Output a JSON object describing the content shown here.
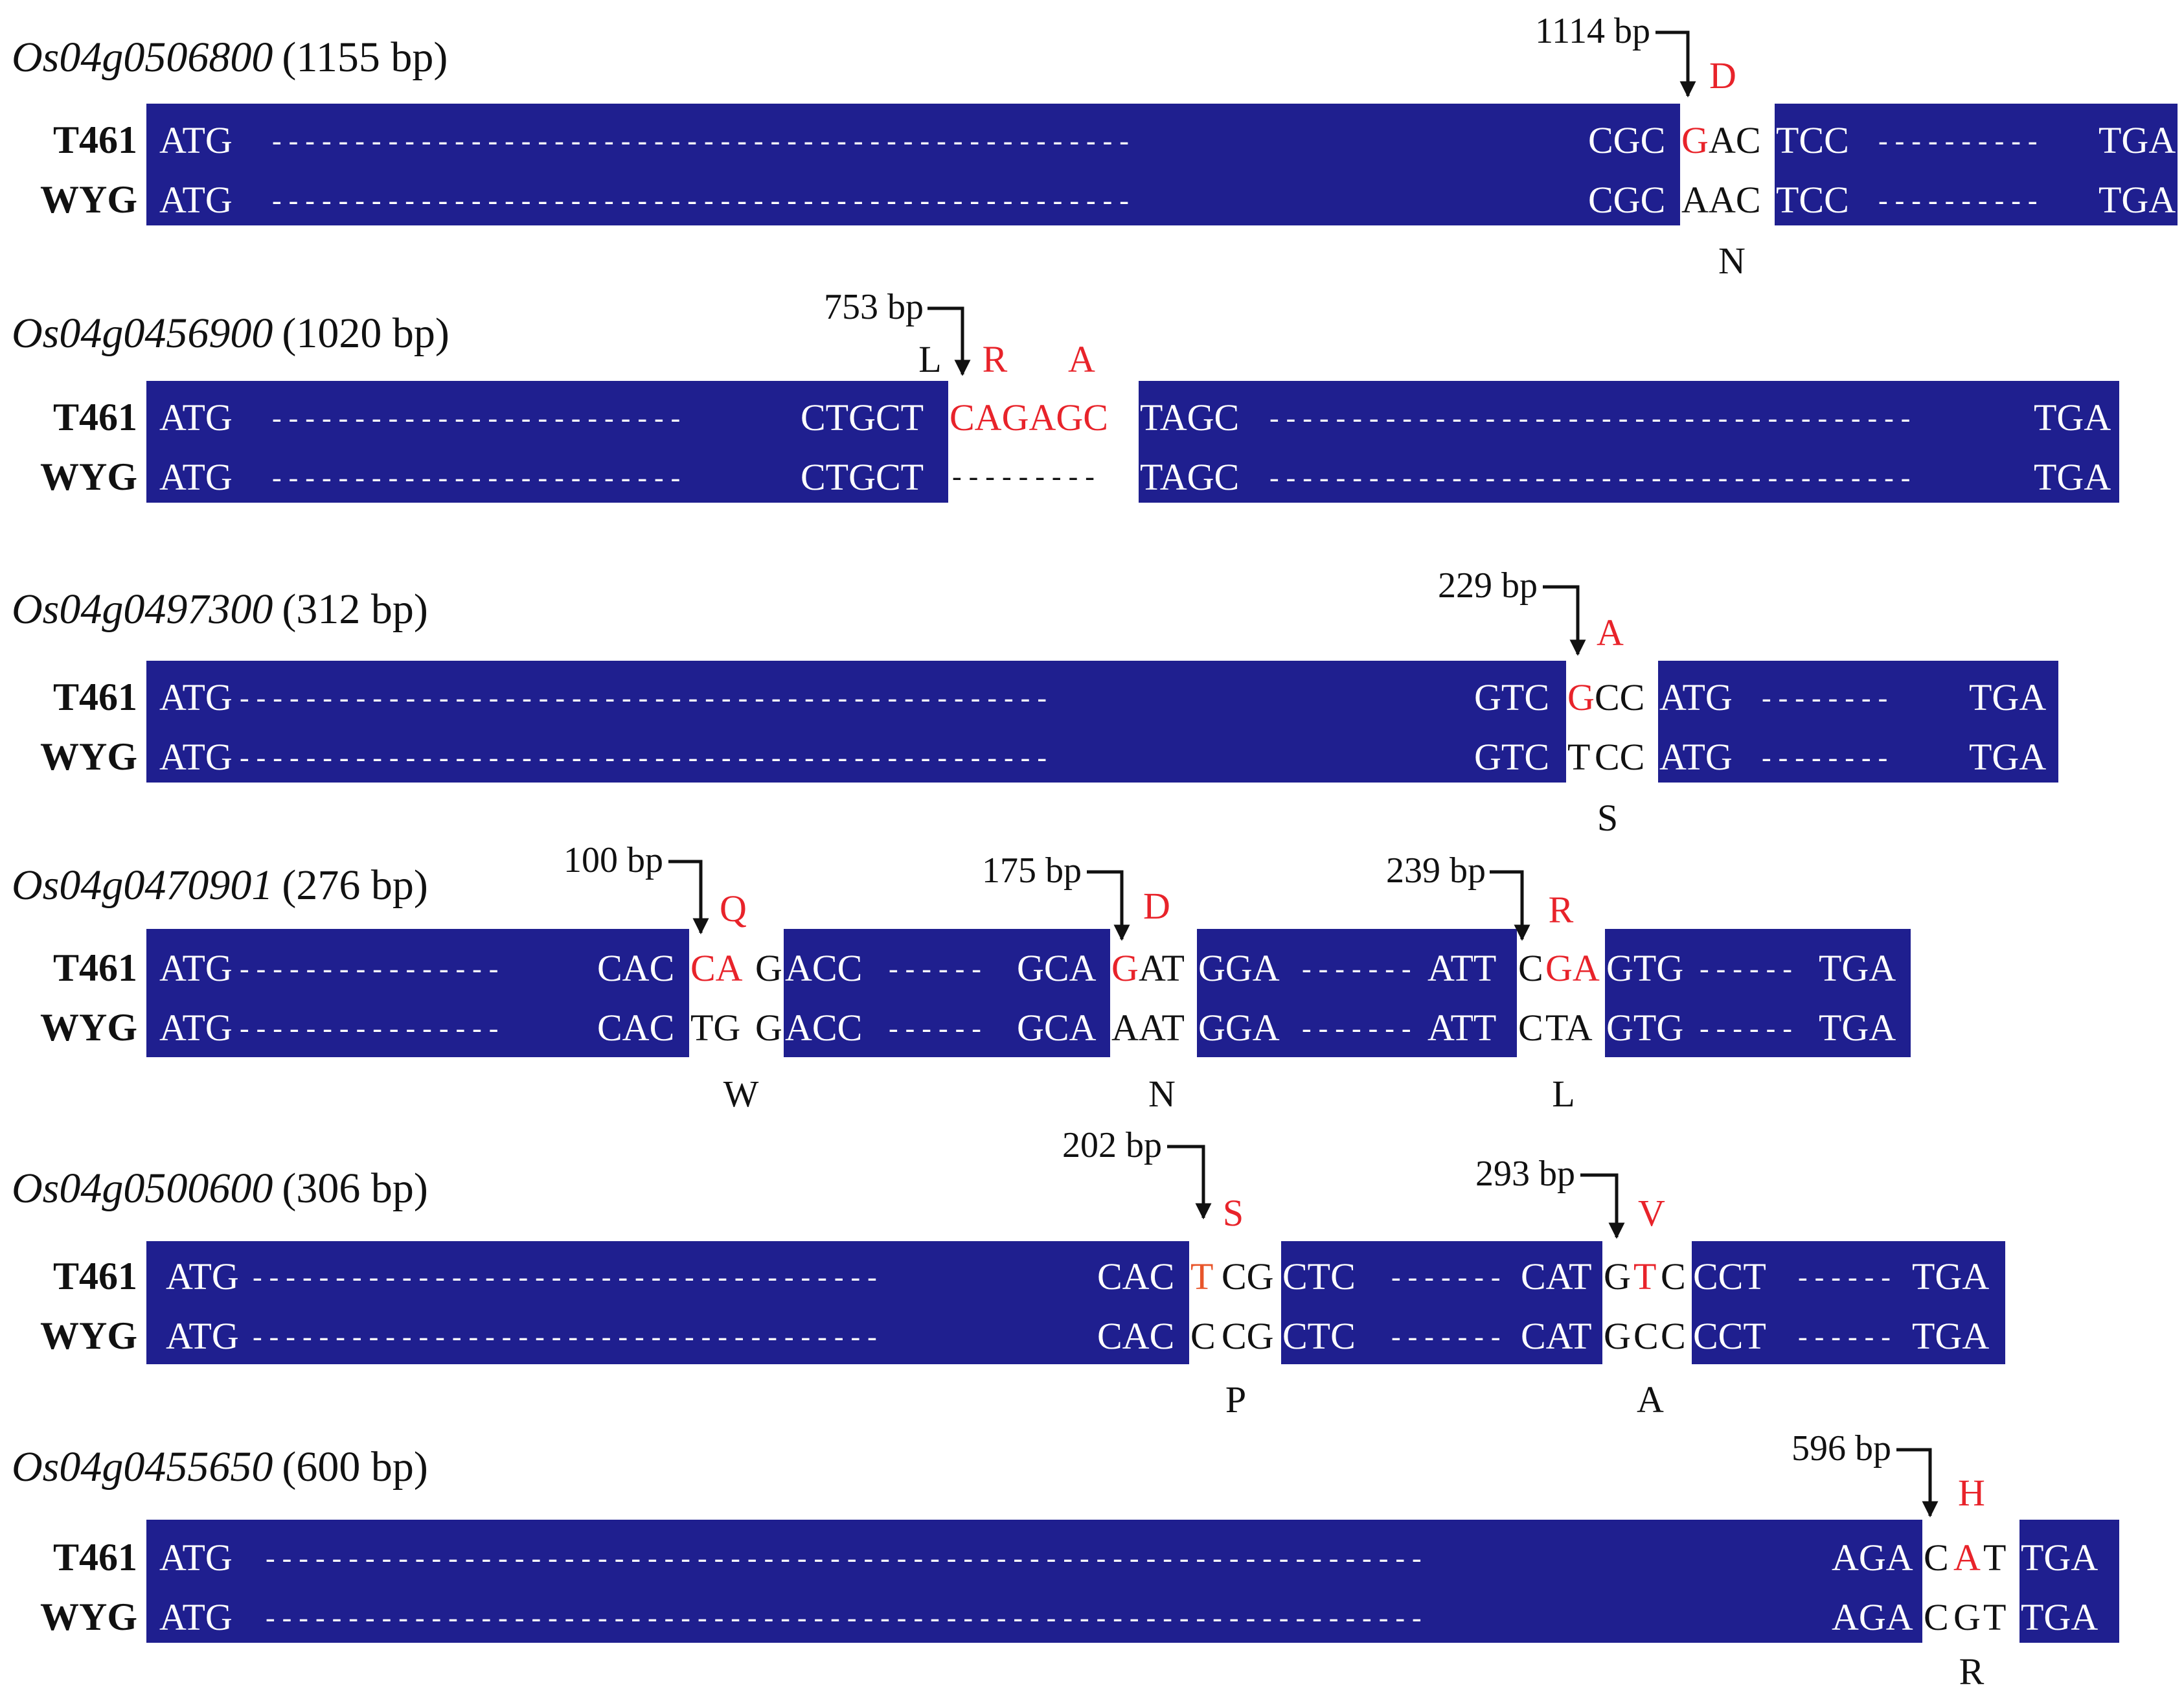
{
  "colors": {
    "bar": "#1f1f8f",
    "text": "#111111",
    "bar_text": "#ffffff",
    "highlight": "#e8232a",
    "highlight_alt": "#e8552a"
  },
  "strains": [
    "T461",
    "WYG"
  ],
  "genes": [
    {
      "id": "Os04g0506800",
      "length": "(1155 bp)",
      "rows": [
        [
          "ATG",
          "- - - - - - - - - - - - - - - - - - - - - - - - - - - - - - - - - - - - - - - - - - - - - - - - - - - -",
          "CGC",
          "G",
          "AC",
          "TCC",
          "- - - - - - - - - -",
          "TGA"
        ],
        [
          "ATG",
          "- - - - - - - - - - - - - - - - - - - - - - - - - - - - - - - - - - - - - - - - - - - - - - - - - - - -",
          "CGC",
          "A",
          "AC",
          "TCC",
          "- - - - - - - - - -",
          "TGA"
        ]
      ],
      "annotations": [
        {
          "pos": "1114 bp",
          "aa_t461": "D",
          "aa_wyg": "N"
        }
      ]
    },
    {
      "id": "Os04g0456900",
      "length": "(1020 bp)",
      "rows": [
        [
          "ATG",
          "- - - - - - - - - - - - - - - - - - - - - - - - -",
          "CTGCT",
          "CAGAGC",
          "TAGC",
          "- - - - - - - - - - - - - - - - - - - - - - - - - - - - - - - - - - - - - - -",
          "TGA"
        ],
        [
          "ATG",
          "- - - - - - - - - - - - - - - - - - - - - - - - -",
          "CTGCT",
          "- - - - - - - - -",
          "TAGC",
          "- - - - - - - - - - - - - - - - - - - - - - - - - - - - - - - - - - - - - - -",
          "TGA"
        ]
      ],
      "annotations": [
        {
          "pos": "753 bp",
          "aa_left": "L",
          "aa_1": "R",
          "aa_2": "A"
        }
      ]
    },
    {
      "id": "Os04g0497300",
      "length": "(312 bp)",
      "rows": [
        [
          "ATG",
          "- - - - - - - - - - - - - - - - - - - - - - - - - - - - - - - - - - - - - - - - - - - - - - - - -",
          "GTC",
          "G",
          "CC",
          "ATG",
          "- - - - - - - -",
          "TGA"
        ],
        [
          "ATG",
          "- - - - - - - - - - - - - - - - - - - - - - - - - - - - - - - - - - - - - - - - - - - - - - - - -",
          "GTC",
          "T",
          "CC",
          "ATG",
          "- - - - - - - -",
          "TGA"
        ]
      ],
      "annotations": [
        {
          "pos": "229 bp",
          "aa_t461": "A",
          "aa_wyg": "S"
        }
      ]
    },
    {
      "id": "Os04g0470901",
      "length": "(276 bp)",
      "rows": [
        [
          "ATG",
          "- - - - - - - - - - - - - - - -",
          "CAC",
          "CA",
          "G",
          "ACC",
          "- - - - - -",
          "GCA",
          "G",
          "AT",
          "GGA",
          "- - - - - - -",
          "ATT",
          "C",
          "GA",
          "GTG",
          "- - - - - -",
          "TGA"
        ],
        [
          "ATG",
          "- - - - - - - - - - - - - - - -",
          "CAC",
          "TG",
          "G",
          "ACC",
          "- - - - - -",
          "GCA",
          "A",
          "AT",
          "GGA",
          "- - - - - - -",
          "ATT",
          "C",
          "TA",
          "GTG",
          "- - - - - -",
          "TGA"
        ]
      ],
      "annotations": [
        {
          "pos": "100 bp",
          "aa_t461": "Q",
          "aa_wyg": "W"
        },
        {
          "pos": "175 bp",
          "aa_t461": "D",
          "aa_wyg": "N"
        },
        {
          "pos": "239 bp",
          "aa_t461": "R",
          "aa_wyg": "L"
        }
      ]
    },
    {
      "id": "Os04g0500600",
      "length": "(306 bp)",
      "rows": [
        [
          "ATG",
          "- - - - - - - - - - - - - - - - - - - - - - - - - - - - - - - - - - - - - -",
          "CAC",
          "T",
          "CG",
          "CTC",
          "- - - - - - -",
          "CAT",
          "G",
          "T",
          "C",
          "CCT",
          "- - - - - -",
          "TGA"
        ],
        [
          "ATG",
          "- - - - - - - - - - - - - - - - - - - - - - - - - - - - - - - - - - - - - -",
          "CAC",
          "C",
          "CG",
          "CTC",
          "- - - - - - -",
          "CAT",
          "G",
          "C",
          "C",
          "CCT",
          "- - - - - -",
          "TGA"
        ]
      ],
      "annotations": [
        {
          "pos": "202 bp",
          "aa_t461": "S",
          "aa_wyg": "P"
        },
        {
          "pos": "293 bp",
          "aa_t461": "V",
          "aa_wyg": "A"
        }
      ]
    },
    {
      "id": "Os04g0455650",
      "length": "(600 bp)",
      "rows": [
        [
          "ATG",
          "- - - - - - - - - - - - - - - - - - - - - - - - - - - - - - - - - - - - - - - - - - - - - - - - - - - - - - - - - - - - - - - - - - - - - -",
          "AGA",
          "C",
          "A",
          "T",
          "TGA"
        ],
        [
          "ATG",
          "- - - - - - - - - - - - - - - - - - - - - - - - - - - - - - - - - - - - - - - - - - - - - - - - - - - - - - - - - - - - - - - - - - - - - -",
          "AGA",
          "C",
          "G",
          "T",
          "TGA"
        ]
      ],
      "annotations": [
        {
          "pos": "596 bp",
          "aa_t461": "H",
          "aa_wyg": "R"
        }
      ]
    }
  ]
}
